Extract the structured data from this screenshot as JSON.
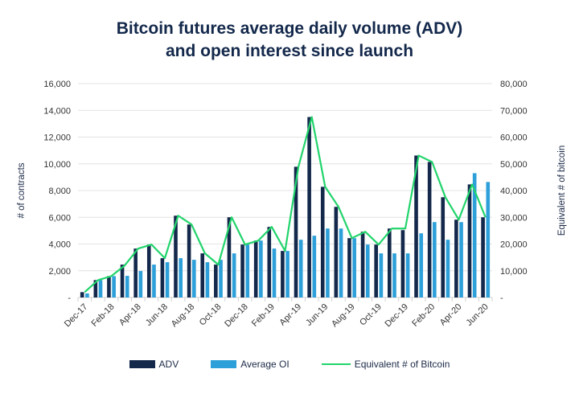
{
  "chart_data": {
    "type": "bar+line",
    "title_line1": "Bitcoin futures average daily volume (ADV)",
    "title_line2": "and open interest since launch",
    "ylabel": "# of contracts",
    "y2label": "Equivalent # of bitcoin",
    "ylim": [
      0,
      16000
    ],
    "y2lim": [
      0,
      80000
    ],
    "yticks": [
      "-",
      "2,000",
      "4,000",
      "6,000",
      "8,000",
      "10,000",
      "12,000",
      "14,000",
      "16,000"
    ],
    "y2ticks": [
      "-",
      "10,000",
      "20,000",
      "30,000",
      "40,000",
      "50,000",
      "60,000",
      "70,000",
      "80,000"
    ],
    "categories": [
      "Dec-17",
      "Jan-18",
      "Feb-18",
      "Mar-18",
      "Apr-18",
      "May-18",
      "Jun-18",
      "Jul-18",
      "Aug-18",
      "Sep-18",
      "Oct-18",
      "Nov-18",
      "Dec-18",
      "Jan-19",
      "Feb-19",
      "Mar-19",
      "Apr-19",
      "May-19",
      "Jun-19",
      "Jul-19",
      "Aug-19",
      "Sep-19",
      "Oct-19",
      "Nov-19",
      "Dec-19",
      "Jan-20",
      "Feb-20",
      "Mar-20",
      "Apr-20",
      "May-20",
      "Jun-20"
    ],
    "xtick_labels": [
      "Dec-17",
      "Feb-18",
      "Apr-18",
      "Jun-18",
      "Aug-18",
      "Oct-18",
      "Dec-18",
      "Feb-19",
      "Apr-19",
      "Jun-19",
      "Aug-19",
      "Oct-19",
      "Dec-19",
      "Feb-20",
      "Apr-20",
      "Jun-20"
    ],
    "series": [
      {
        "name": "ADV",
        "type": "bar",
        "axis": "left",
        "color": "#13284b",
        "values": [
          400,
          1300,
          1600,
          2460,
          3660,
          3960,
          2940,
          6120,
          5460,
          3300,
          2460,
          6000,
          3960,
          4260,
          5280,
          3480,
          9780,
          13500,
          8280,
          6780,
          4440,
          4920,
          3960,
          5160,
          5040,
          10620,
          10140,
          7500,
          5820,
          8460,
          6000
        ]
      },
      {
        "name": "Average OI",
        "type": "bar",
        "axis": "left",
        "color": "#2d9fd9",
        "values": [
          300,
          1300,
          1600,
          1620,
          1980,
          2460,
          2640,
          2940,
          2820,
          2640,
          2820,
          3300,
          3960,
          4260,
          3660,
          3480,
          4320,
          4620,
          5160,
          5160,
          4440,
          3960,
          3300,
          3300,
          3300,
          4800,
          5640,
          4320,
          5640,
          9300,
          8640
        ]
      },
      {
        "name": "Equivalent # of Bitcoin",
        "type": "line",
        "axis": "right",
        "color": "#22d46c",
        "values": [
          2000,
          6500,
          8000,
          12000,
          18300,
          19800,
          14700,
          30600,
          27300,
          16500,
          12300,
          30000,
          19800,
          21300,
          26400,
          17400,
          48900,
          67500,
          41400,
          33900,
          22200,
          24600,
          19800,
          25800,
          25800,
          53100,
          50700,
          37500,
          29100,
          42300,
          30000
        ]
      }
    ],
    "legend_position": "bottom",
    "grid": true
  }
}
